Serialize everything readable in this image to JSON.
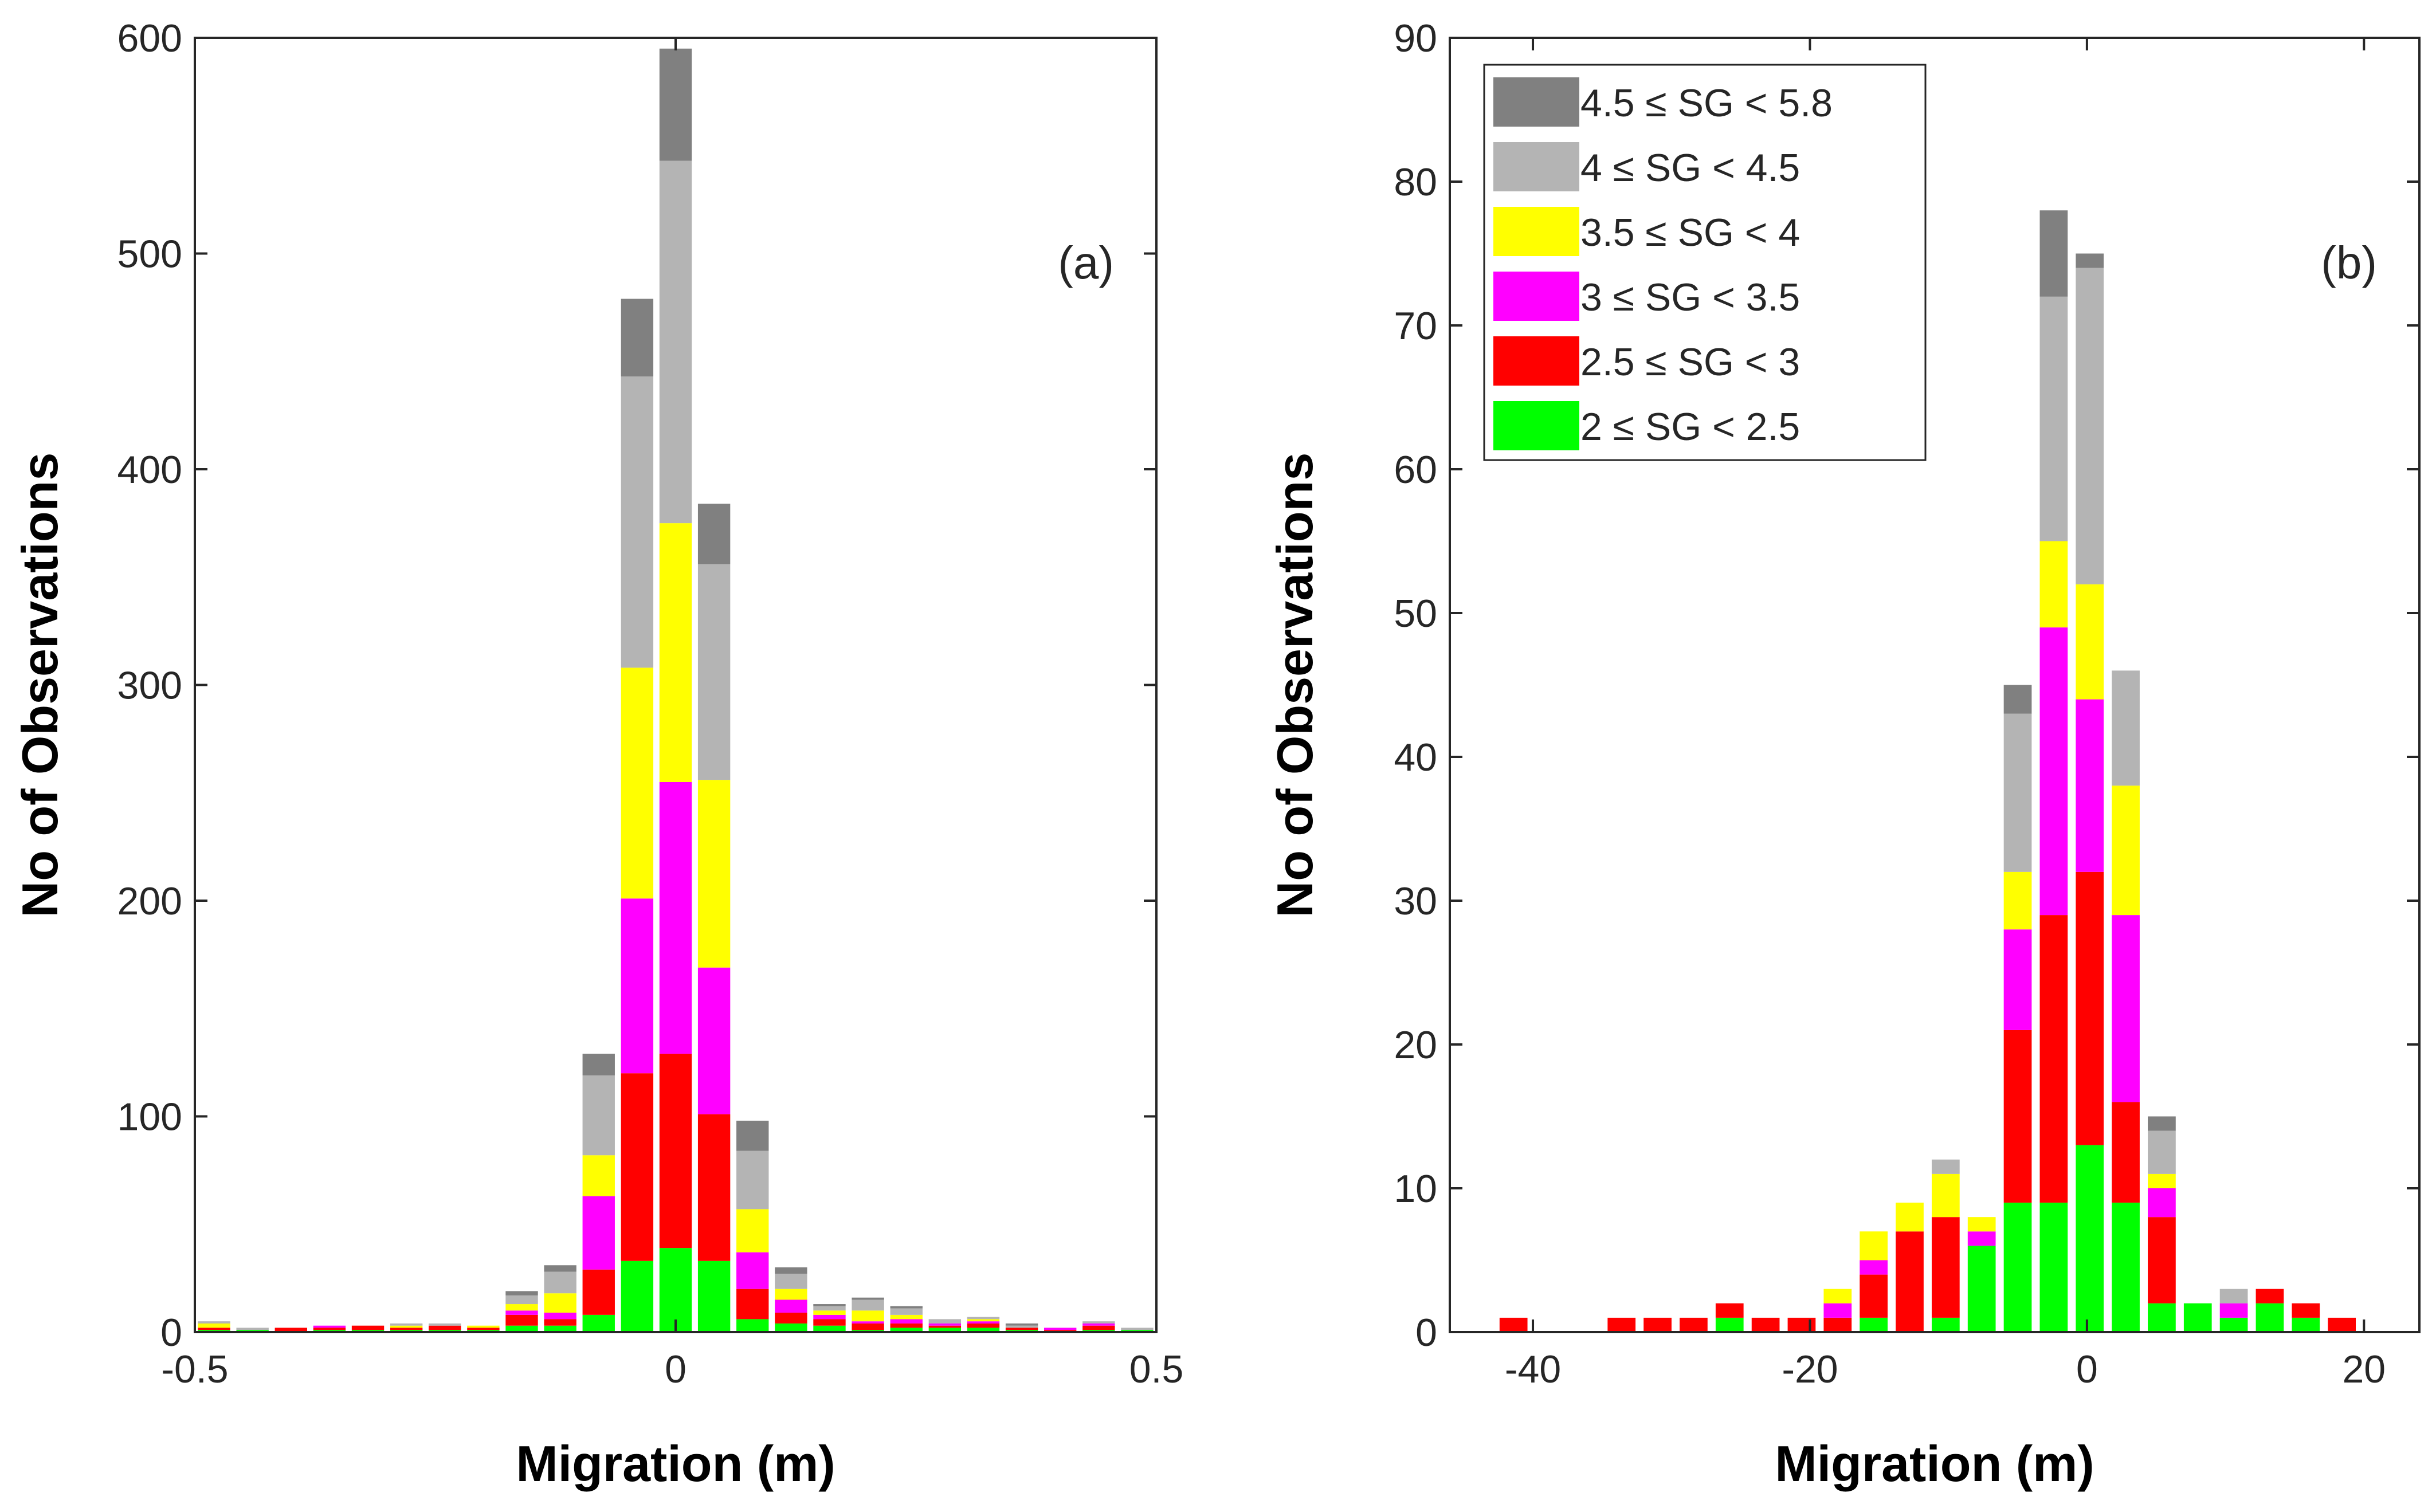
{
  "colors": {
    "sg_4_5_5_8": "#808080",
    "sg_4_4_5": "#b4b4b4",
    "sg_3_5_4": "#ffff00",
    "sg_3_3_5": "#ff00ff",
    "sg_2_5_3": "#ff0000",
    "sg_2_2_5": "#00ff00",
    "axis": "#262626"
  },
  "legend": {
    "items": [
      {
        "label": "4.5 ≤ SG < 5.8",
        "color": "#808080"
      },
      {
        "label": "4 ≤ SG < 4.5",
        "color": "#b4b4b4"
      },
      {
        "label": "3.5 ≤ SG < 4",
        "color": "#ffff00"
      },
      {
        "label": "3 ≤ SG < 3.5",
        "color": "#ff00ff"
      },
      {
        "label": "2.5 ≤ SG < 3",
        "color": "#ff0000"
      },
      {
        "label": "2 ≤ SG < 2.5",
        "color": "#00ff00"
      }
    ]
  },
  "chart_data": [
    {
      "type": "bar",
      "stacked": true,
      "panel_label": "(a)",
      "xlabel": "Migration (m)",
      "ylabel": "No of Observations",
      "xlim": [
        -0.5,
        0.5
      ],
      "ylim": [
        0,
        600
      ],
      "bin_width": 0.04,
      "xticks": [
        -0.5,
        0,
        0.5
      ],
      "xtick_labels": [
        "-0.5",
        "0",
        "0.5"
      ],
      "yticks": [
        0,
        100,
        200,
        300,
        400,
        500,
        600
      ],
      "ytick_labels": [
        "0",
        "100",
        "200",
        "300",
        "400",
        "500",
        "600"
      ],
      "x": [
        -0.48,
        -0.44,
        -0.4,
        -0.36,
        -0.32,
        -0.28,
        -0.24,
        -0.2,
        -0.16,
        -0.12,
        -0.08,
        -0.04,
        0.0,
        0.04,
        0.08,
        0.12,
        0.16,
        0.2,
        0.24,
        0.28,
        0.32,
        0.36,
        0.4,
        0.44,
        0.48
      ],
      "series": [
        {
          "name": "2 ≤ SG < 2.5",
          "values": [
            1,
            1,
            0,
            1,
            1,
            1,
            1,
            1,
            3,
            3,
            8,
            33,
            39,
            33,
            6,
            4,
            3,
            1,
            2,
            2,
            2,
            1,
            0,
            1,
            1
          ]
        },
        {
          "name": "2.5 ≤ SG < 3",
          "values": [
            1,
            0,
            2,
            1,
            2,
            1,
            2,
            1,
            5,
            3,
            21,
            87,
            90,
            68,
            14,
            5,
            3,
            3,
            2,
            1,
            2,
            1,
            1,
            2,
            0
          ]
        },
        {
          "name": "3 ≤ SG < 3.5",
          "values": [
            0,
            0,
            0,
            1,
            0,
            0,
            0,
            0,
            2,
            3,
            34,
            81,
            126,
            68,
            17,
            6,
            2,
            1,
            2,
            1,
            1,
            0,
            1,
            1,
            0
          ]
        },
        {
          "name": "3.5 ≤ SG < 4",
          "values": [
            2,
            0,
            0,
            0,
            0,
            1,
            0,
            1,
            3,
            9,
            19,
            107,
            120,
            87,
            20,
            5,
            2,
            5,
            2,
            0,
            1,
            0,
            0,
            0,
            0
          ]
        },
        {
          "name": "4 ≤ SG < 4.5",
          "values": [
            1,
            1,
            0,
            0,
            0,
            1,
            1,
            0,
            4,
            10,
            37,
            135,
            168,
            100,
            27,
            7,
            2,
            5,
            3,
            2,
            1,
            1,
            0,
            1,
            1
          ]
        },
        {
          "name": "4.5 ≤ SG < 5.8",
          "values": [
            0,
            0,
            0,
            0,
            0,
            0,
            0,
            0,
            2,
            3,
            10,
            36,
            52,
            28,
            14,
            3,
            1,
            1,
            1,
            0,
            0,
            1,
            0,
            0,
            0
          ]
        }
      ]
    },
    {
      "type": "bar",
      "stacked": true,
      "panel_label": "(b)",
      "xlabel": "Migration (m)",
      "ylabel": "No of Observations",
      "xlim": [
        -46,
        24
      ],
      "ylim": [
        0,
        90
      ],
      "bin_width": 2.4,
      "xticks": [
        -40,
        -20,
        0,
        20
      ],
      "xtick_labels": [
        "-40",
        "-20",
        "0",
        "20"
      ],
      "yticks": [
        0,
        10,
        20,
        30,
        40,
        50,
        60,
        70,
        80,
        90
      ],
      "ytick_labels": [
        "0",
        "10",
        "20",
        "30",
        "40",
        "50",
        "60",
        "70",
        "80",
        "90"
      ],
      "x": [
        -41.4,
        -33.6,
        -31.0,
        -28.4,
        -25.8,
        -23.2,
        -20.6,
        -18.0,
        -15.4,
        -12.8,
        -10.2,
        -7.6,
        -5.0,
        -2.4,
        0.2,
        2.8,
        5.4,
        8.0,
        10.6,
        13.2,
        15.8,
        18.4
      ],
      "series": [
        {
          "name": "2 ≤ SG < 2.5",
          "values": [
            0,
            0,
            0,
            0,
            1,
            0,
            0,
            0,
            1,
            0,
            1,
            6,
            9,
            9,
            13,
            9,
            2,
            2,
            1,
            2,
            1,
            0
          ]
        },
        {
          "name": "2.5 ≤ SG < 3",
          "values": [
            1,
            1,
            1,
            1,
            1,
            1,
            1,
            1,
            3,
            7,
            7,
            0,
            12,
            20,
            19,
            7,
            6,
            0,
            0,
            1,
            1,
            1
          ]
        },
        {
          "name": "3 ≤ SG < 3.5",
          "values": [
            0,
            0,
            0,
            0,
            0,
            0,
            0,
            1,
            1,
            0,
            0,
            1,
            7,
            20,
            12,
            13,
            2,
            0,
            1,
            0,
            0,
            0
          ]
        },
        {
          "name": "3.5 ≤ SG < 4",
          "values": [
            0,
            0,
            0,
            0,
            0,
            0,
            0,
            1,
            2,
            2,
            3,
            1,
            4,
            6,
            8,
            9,
            1,
            0,
            0,
            0,
            0,
            0
          ]
        },
        {
          "name": "4 ≤ SG < 4.5",
          "values": [
            0,
            0,
            0,
            0,
            0,
            0,
            0,
            0,
            0,
            0,
            1,
            0,
            11,
            17,
            22,
            8,
            3,
            0,
            1,
            0,
            0,
            0
          ]
        },
        {
          "name": "4.5 ≤ SG < 5.8",
          "values": [
            0,
            0,
            0,
            0,
            0,
            0,
            0,
            0,
            0,
            0,
            0,
            0,
            2,
            6,
            1,
            0,
            1,
            0,
            0,
            0,
            0,
            0
          ]
        }
      ]
    }
  ]
}
